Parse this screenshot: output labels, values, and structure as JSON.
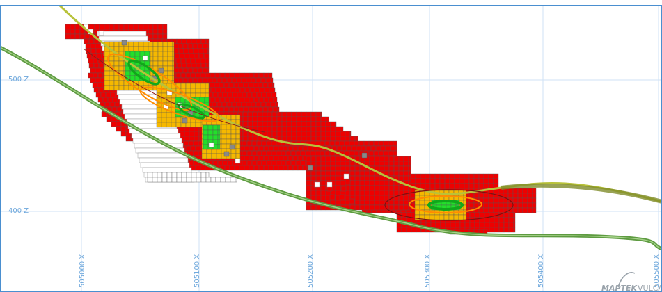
{
  "view": {
    "z_labels": [
      "500 Z",
      "400 Z"
    ],
    "x_labels": [
      "505000 X",
      "505100 X",
      "505200 X",
      "505300 X",
      "505400 X",
      "505500 X"
    ]
  },
  "branding": {
    "logo_text": "MAPTEK",
    "product_text": "VULCAN"
  },
  "colors": {
    "frame": "#4a8fd0",
    "grid": "#cfe2f5",
    "grid_label": "#6fa8dc",
    "block_high": "#ee0000",
    "block_mid": "#f5b800",
    "block_core": "#22e02a",
    "block_waste": "#888888",
    "block_outline": "#555555",
    "topo_surface": "#5e9b41",
    "pit_line": "#b8c23a"
  }
}
